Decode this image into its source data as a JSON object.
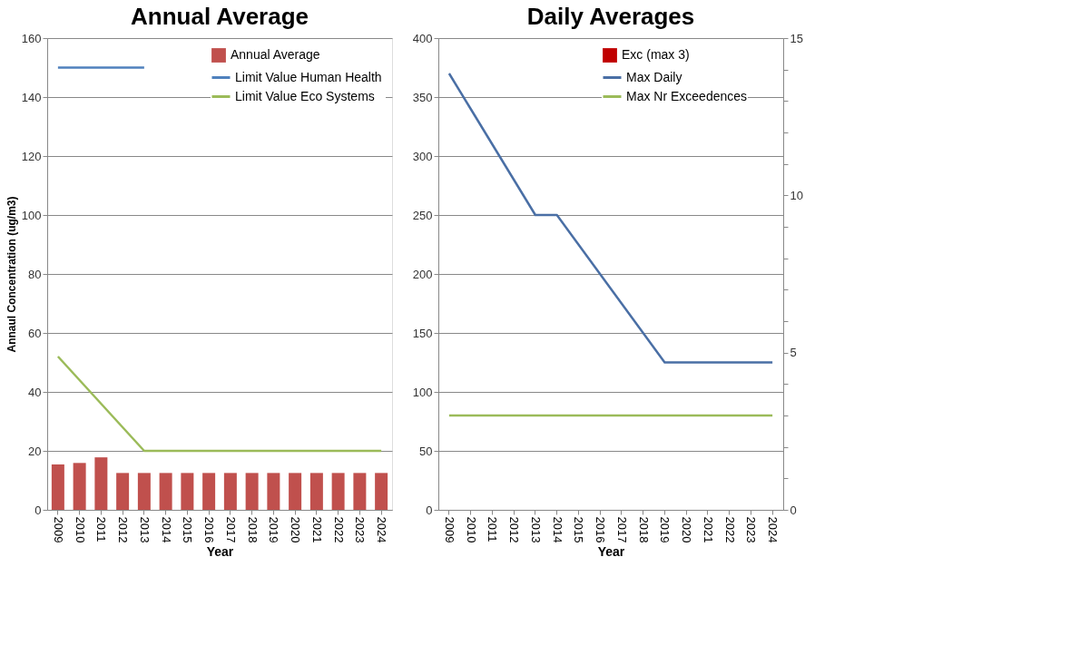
{
  "chart_data": [
    {
      "type": "bar",
      "title": "Annual Average",
      "xlabel": "Year",
      "ylabel": "Annaul Concentration  (ug/m3)",
      "categories": [
        "2009",
        "2010",
        "2011",
        "2012",
        "2013",
        "2014",
        "2015",
        "2016",
        "2017",
        "2018",
        "2019",
        "2020",
        "2021",
        "2022",
        "2023",
        "2024"
      ],
      "series": [
        {
          "name": "Annual Average",
          "color": "#c0504d",
          "values": [
            15.4,
            15.9,
            17.8,
            12.5,
            12.5,
            12.5,
            12.5,
            12.5,
            12.5,
            12.5,
            12.5,
            12.5,
            12.5,
            12.5,
            12.5,
            12.5
          ]
        },
        {
          "name": "Limit  Value Human Health",
          "type": "line",
          "color": "#4f81bd",
          "values": [
            150,
            150,
            150,
            150,
            150,
            null,
            null,
            null,
            null,
            null,
            null,
            null,
            null,
            null,
            null,
            null
          ]
        },
        {
          "name": "Limit  Value Eco Systems",
          "type": "line",
          "color": "#9bbb59",
          "values": [
            52,
            44,
            36,
            28,
            20,
            20,
            20,
            20,
            20,
            20,
            20,
            20,
            20,
            20,
            20,
            20
          ]
        }
      ],
      "ylim": [
        0,
        160
      ],
      "yticks": [
        0,
        20,
        40,
        60,
        80,
        100,
        120,
        140,
        160
      ],
      "grid": "y",
      "legend": "top right"
    },
    {
      "type": "bar",
      "title": "Daily Averages",
      "xlabel": "Year",
      "categories": [
        "2009",
        "2010",
        "2011",
        "2012",
        "2013",
        "2014",
        "2015",
        "2016",
        "2017",
        "2018",
        "2019",
        "2020",
        "2021",
        "2022",
        "2023",
        "2024"
      ],
      "series": [
        {
          "name": "Exc (max 3)",
          "axis": "y2",
          "color": "#c00000",
          "values": [
            null,
            null,
            null,
            null,
            null,
            null,
            null,
            null,
            null,
            null,
            null,
            null,
            null,
            null,
            null,
            null
          ]
        },
        {
          "name": "Max Daily",
          "type": "line",
          "color": "#4a6fa5",
          "values": [
            370,
            340,
            310,
            280,
            250,
            250,
            225,
            200,
            175,
            150,
            125,
            125,
            125,
            125,
            125,
            125
          ]
        },
        {
          "name": "Max Nr Exceedences",
          "type": "line",
          "axis": "y2",
          "color": "#9bbb59",
          "values": [
            3,
            3,
            3,
            3,
            3,
            3,
            3,
            3,
            3,
            3,
            3,
            3,
            3,
            3,
            3,
            3
          ]
        }
      ],
      "ylim": [
        0,
        400
      ],
      "yticks": [
        0,
        50,
        100,
        150,
        200,
        250,
        300,
        350,
        400
      ],
      "y2lim": [
        0,
        15
      ],
      "y2ticks": [
        0,
        {
          "value": 1,
          "label": null
        },
        {
          "value": 2,
          "label": null
        },
        {
          "value": 3,
          "label": null
        },
        {
          "value": 4,
          "label": null
        },
        5,
        {
          "value": 6,
          "label": null
        },
        {
          "value": 7,
          "label": null
        },
        {
          "value": 8,
          "label": null
        },
        {
          "value": 9,
          "label": null
        },
        10,
        {
          "value": 11,
          "label": null
        },
        {
          "value": 12,
          "label": null
        },
        {
          "value": 13,
          "label": null
        },
        {
          "value": 14,
          "label": null
        },
        15
      ],
      "grid": "y",
      "legend": "top right"
    }
  ]
}
